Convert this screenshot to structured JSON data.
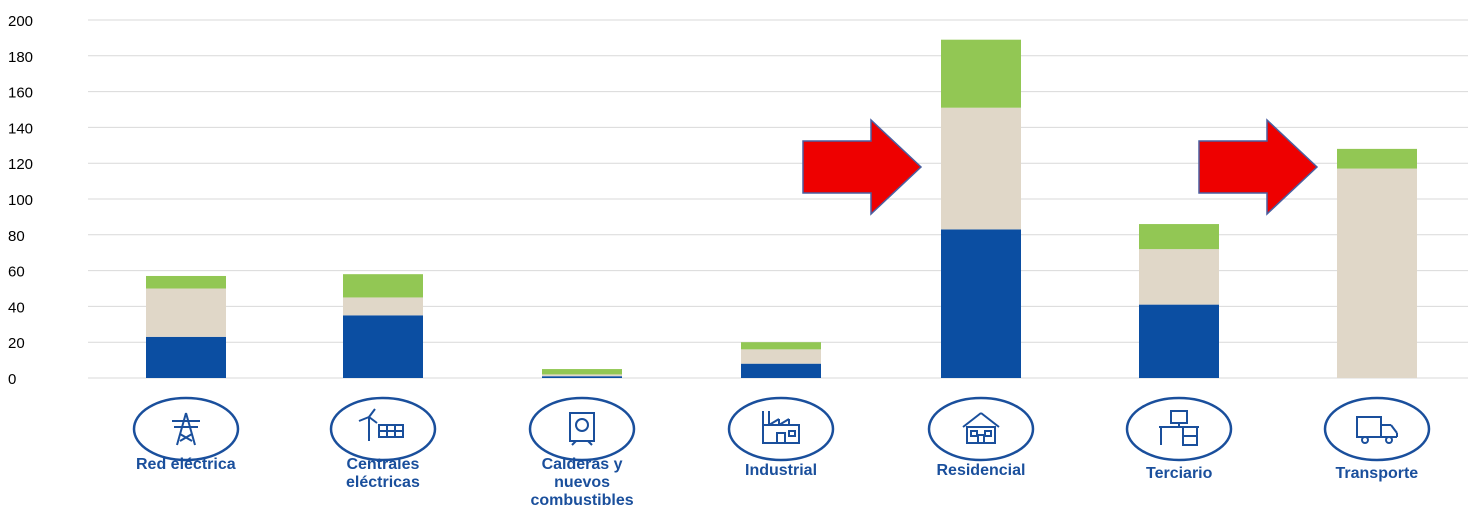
{
  "chart_data": {
    "type": "bar",
    "stacked": true,
    "grid": true,
    "y_ticks": [
      "200",
      "180",
      "160",
      "140",
      "120",
      "100",
      "80",
      "60",
      "40",
      "20",
      "0"
    ],
    "categories": [
      "Red eléctrica",
      "Centrales\neléctricas",
      "Calderas y\nnuevos\ncombustibles",
      "Industrial",
      "Residencial",
      "Terciario",
      "Transporte"
    ],
    "icons": [
      "power-tower-icon",
      "wind-solar-plant-icon",
      "boiler-icon",
      "factory-icon",
      "house-icon",
      "office-desk-icon",
      "truck-icon"
    ],
    "series": [
      {
        "values": [
          23,
          35,
          1,
          8,
          83,
          41,
          0
        ],
        "color": "#0b4ea2"
      },
      {
        "values": [
          27,
          10,
          1,
          8,
          68,
          31,
          117
        ],
        "color": "#e0d7c8"
      },
      {
        "values": [
          7,
          13,
          3,
          4,
          38,
          14,
          11
        ],
        "color": "#92c754"
      }
    ],
    "highlight_arrows": [
      "Residencial",
      "Transporte"
    ],
    "colors": {
      "grid": "#d9d9d9",
      "label": "#1a4f9c",
      "icon": "#1a4f9c",
      "arrow": "#ee0000",
      "arrow_outline": "#4a5fa0"
    }
  }
}
